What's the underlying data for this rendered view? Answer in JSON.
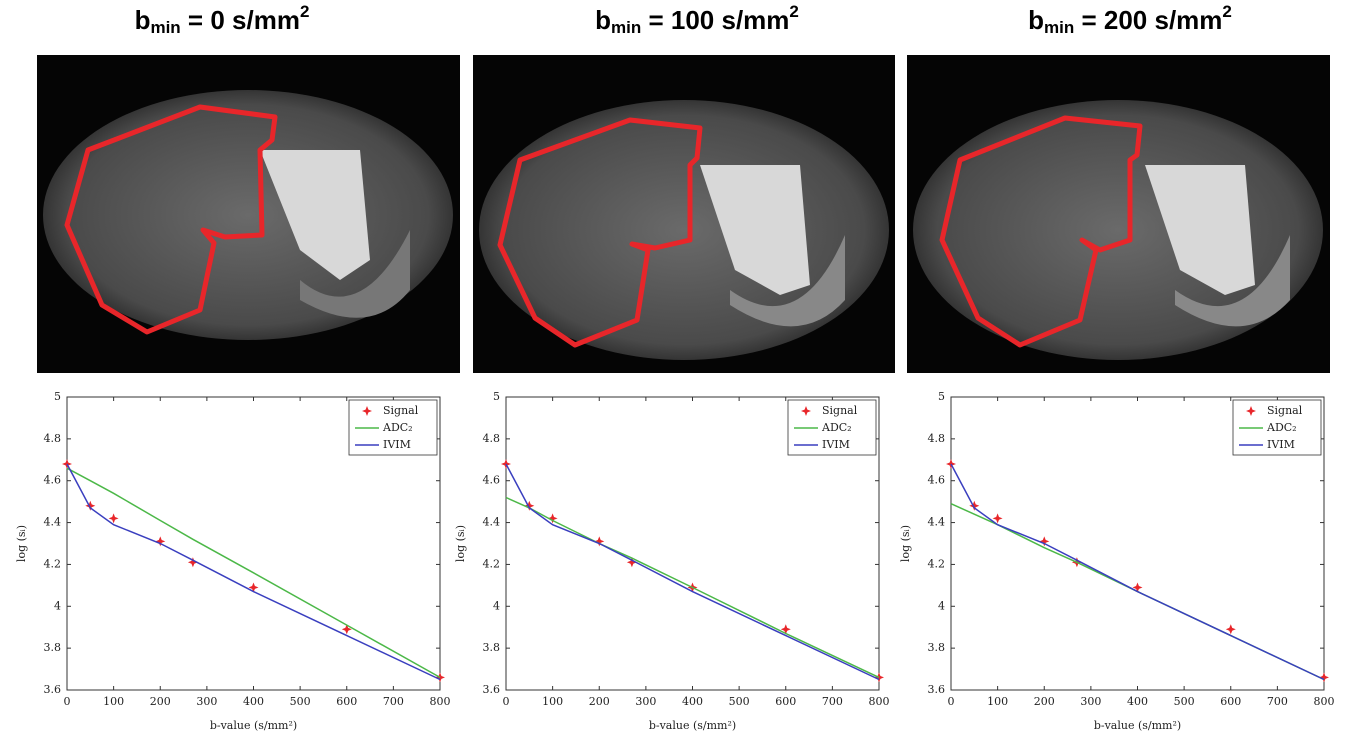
{
  "chart_data": [
    {
      "type": "line",
      "title": {
        "base": "b",
        "sub": "min",
        "text": " = 0 s/mm",
        "sup": "2"
      },
      "xlabel": "b-value (s/mm²)",
      "ylabel": "log (sᵢ)",
      "x": [
        0,
        50,
        100,
        200,
        270,
        400,
        600,
        800
      ],
      "series": [
        {
          "name": "Signal",
          "color": "#e8262a",
          "mode": "markers",
          "values": [
            4.68,
            4.48,
            4.42,
            4.31,
            4.21,
            4.09,
            3.89,
            3.66
          ]
        },
        {
          "name": "ADC₂",
          "color": "#4cb848",
          "mode": "lines",
          "values": [
            4.66,
            4.6,
            4.54,
            4.41,
            4.32,
            4.16,
            3.91,
            3.66
          ]
        },
        {
          "name": "IVIM",
          "color": "#3a3fbf",
          "mode": "lines",
          "values": [
            4.68,
            4.47,
            4.39,
            4.3,
            4.22,
            4.07,
            3.86,
            3.65
          ]
        }
      ],
      "xlim": [
        0,
        800
      ],
      "ylim": [
        3.6,
        5
      ],
      "xticks": [
        0,
        100,
        200,
        300,
        400,
        500,
        600,
        700,
        800
      ],
      "yticks": [
        3.6,
        3.8,
        4,
        4.2,
        4.4,
        4.6,
        4.8,
        5
      ],
      "legend": "upper-right",
      "grid": false
    },
    {
      "type": "line",
      "title": {
        "base": "b",
        "sub": "min",
        "text": " = 100 s/mm",
        "sup": "2"
      },
      "xlabel": "b-value (s/mm²)",
      "ylabel": "log (sᵢ)",
      "x": [
        0,
        50,
        100,
        200,
        270,
        400,
        600,
        800
      ],
      "series": [
        {
          "name": "Signal",
          "color": "#e8262a",
          "mode": "markers",
          "values": [
            4.68,
            4.48,
            4.42,
            4.31,
            4.21,
            4.09,
            3.89,
            3.66
          ]
        },
        {
          "name": "ADC₂",
          "color": "#4cb848",
          "mode": "lines",
          "values": [
            4.52,
            4.47,
            4.41,
            4.3,
            4.23,
            4.09,
            3.87,
            3.66
          ]
        },
        {
          "name": "IVIM",
          "color": "#3a3fbf",
          "mode": "lines",
          "values": [
            4.68,
            4.47,
            4.39,
            4.3,
            4.22,
            4.07,
            3.86,
            3.65
          ]
        }
      ],
      "xlim": [
        0,
        800
      ],
      "ylim": [
        3.6,
        5
      ],
      "xticks": [
        0,
        100,
        200,
        300,
        400,
        500,
        600,
        700,
        800
      ],
      "yticks": [
        3.6,
        3.8,
        4,
        4.2,
        4.4,
        4.6,
        4.8,
        5
      ],
      "legend": "upper-right",
      "grid": false
    },
    {
      "type": "line",
      "title": {
        "base": "b",
        "sub": "min",
        "text": " = 200 s/mm",
        "sup": "2"
      },
      "xlabel": "b-value (s/mm²)",
      "ylabel": "log (sᵢ)",
      "x": [
        0,
        50,
        100,
        200,
        270,
        400,
        600,
        800
      ],
      "series": [
        {
          "name": "Signal",
          "color": "#e8262a",
          "mode": "markers",
          "values": [
            4.68,
            4.48,
            4.42,
            4.31,
            4.21,
            4.09,
            3.89,
            3.66
          ]
        },
        {
          "name": "ADC₂",
          "color": "#4cb848",
          "mode": "lines",
          "values": [
            4.49,
            4.44,
            4.39,
            4.28,
            4.21,
            4.07,
            3.86,
            3.65
          ]
        },
        {
          "name": "IVIM",
          "color": "#3a3fbf",
          "mode": "lines",
          "values": [
            4.68,
            4.47,
            4.39,
            4.3,
            4.22,
            4.07,
            3.86,
            3.65
          ]
        }
      ],
      "xlim": [
        0,
        800
      ],
      "ylim": [
        3.6,
        5
      ],
      "xticks": [
        0,
        100,
        200,
        300,
        400,
        500,
        600,
        700,
        800
      ],
      "yticks": [
        3.6,
        3.8,
        4,
        4.2,
        4.4,
        4.6,
        4.8,
        5
      ],
      "legend": "upper-right",
      "grid": false
    }
  ]
}
